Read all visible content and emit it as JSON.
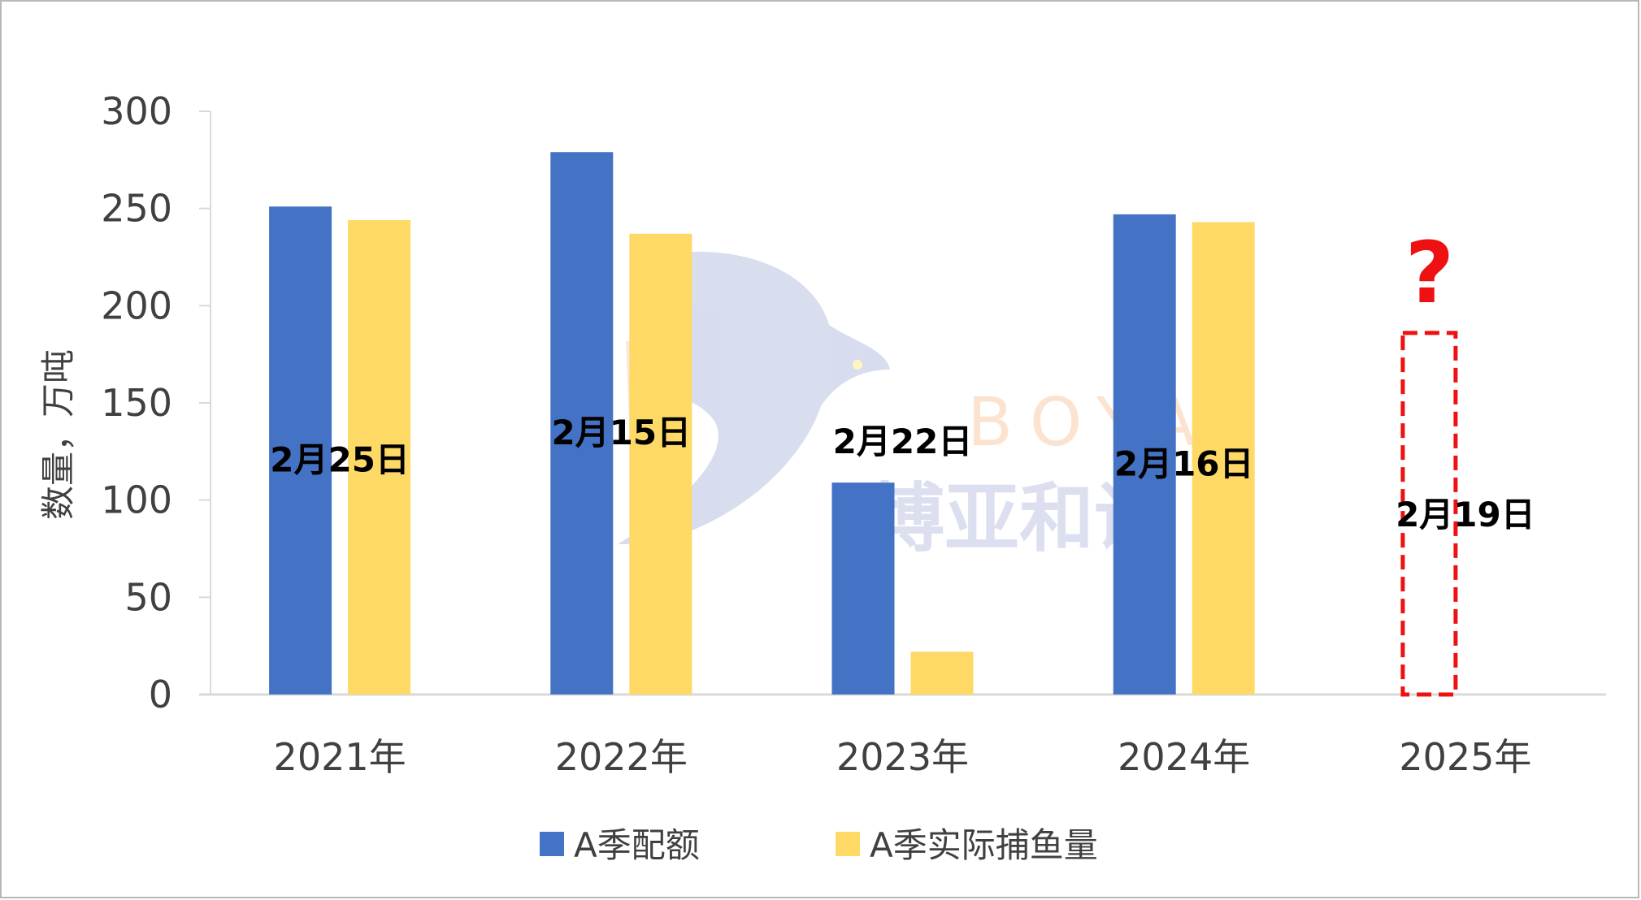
{
  "colors": {
    "series_a": "#4472c4",
    "series_b": "#ffd966",
    "placeholder": "#ee1111",
    "axis": "#d9d9d9"
  },
  "chart_data": {
    "type": "bar",
    "categories": [
      "2021年",
      "2022年",
      "2023年",
      "2024年",
      "2025年"
    ],
    "series": [
      {
        "name": "A季配额",
        "values": [
          251,
          279,
          109,
          247,
          null
        ]
      },
      {
        "name": "A季实际捕鱼量",
        "values": [
          244,
          237,
          22,
          243,
          null
        ]
      }
    ],
    "annotations": [
      "2月25日",
      "2月15日",
      "2月22日",
      "2月16日",
      "2月19日"
    ],
    "placeholder": {
      "category": "2025年",
      "approx_value": 186,
      "marker": "?"
    },
    "ylabel": "数量，万吨",
    "ylim": [
      0,
      300
    ],
    "yticks": [
      0,
      50,
      100,
      150,
      200,
      250,
      300
    ],
    "legend_position": "bottom",
    "grid": false
  },
  "watermark": {
    "latin": "BOYA",
    "cjk": "博亚和讯"
  }
}
